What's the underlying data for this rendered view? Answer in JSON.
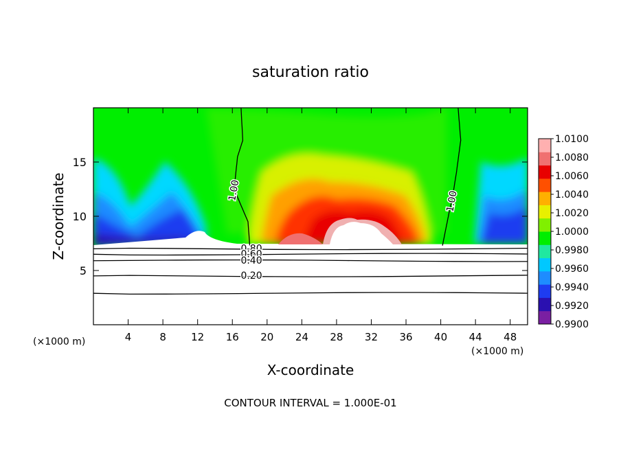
{
  "chart_data": {
    "type": "heatmap",
    "title": "saturation ratio",
    "xlabel": "X-coordinate",
    "ylabel": "Z-coordinate",
    "x_unit": "(×1000 m)",
    "y_unit": "(×1000 m)",
    "xlim": [
      0,
      50
    ],
    "ylim": [
      0,
      20
    ],
    "x_ticks": [
      4,
      8,
      12,
      16,
      20,
      24,
      28,
      32,
      36,
      40,
      44,
      48
    ],
    "y_ticks": [
      5,
      10,
      15
    ],
    "footer": "CONTOUR INTERVAL = 1.000E-01",
    "colorbar": {
      "levels": [
        "1.0100",
        "1.0080",
        "1.0060",
        "1.0040",
        "1.0020",
        "1.0000",
        "0.9980",
        "0.9960",
        "0.9940",
        "0.9920",
        "0.9900"
      ],
      "colors": [
        "#7a1fa2",
        "#2a10b0",
        "#1e3cf0",
        "#1e8cff",
        "#00c8ff",
        "#20e8a0",
        "#00ee00",
        "#80f000",
        "#e8f000",
        "#ffb000",
        "#ff5000",
        "#e80000",
        "#f07070",
        "#ffb0b0"
      ]
    },
    "contours": [
      {
        "label": "1.00",
        "x_path": [
          17.0,
          17.2,
          16.6,
          16.2,
          17.0,
          17.8,
          18.0
        ],
        "z_path": [
          20,
          17,
          15.5,
          12.5,
          11.0,
          9.5,
          7.3
        ]
      },
      {
        "label": "1.00",
        "x_path": [
          42.0,
          42.3,
          41.8,
          41.3,
          41.0,
          40.2
        ],
        "z_path": [
          20,
          17,
          14,
          11.5,
          10.5,
          7.3
        ]
      },
      {
        "label": "0.80",
        "x_path": [
          0,
          50
        ],
        "z_path": [
          7.0,
          7.0
        ]
      },
      {
        "label": "0.60",
        "x_path": [
          0,
          50
        ],
        "z_path": [
          6.5,
          6.5
        ]
      },
      {
        "label": "0.40",
        "x_path": [
          0,
          50
        ],
        "z_path": [
          5.9,
          5.9
        ]
      },
      {
        "label": "0.20",
        "x_path": [
          0,
          50
        ],
        "z_path": [
          4.5,
          4.5
        ]
      },
      {
        "label": "",
        "x_path": [
          0,
          50
        ],
        "z_path": [
          2.9,
          2.9
        ]
      }
    ]
  }
}
